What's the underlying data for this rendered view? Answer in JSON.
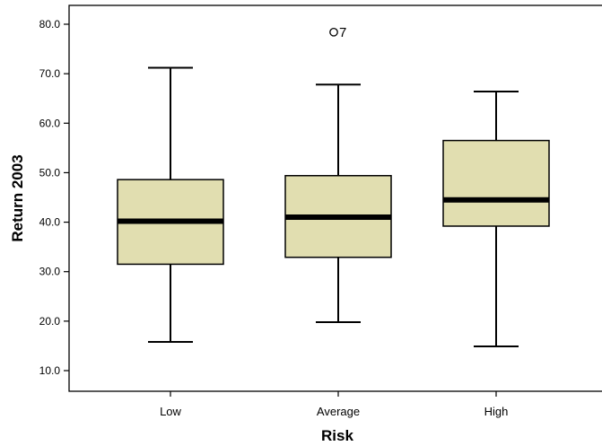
{
  "colors": {
    "box_fill": "#e1deb0",
    "stroke": "#000000",
    "background": "#ffffff"
  },
  "chart_data": {
    "type": "boxplot",
    "xlabel": "Risk",
    "ylabel": "Return 2003",
    "ylim": [
      5,
      84
    ],
    "yticks": [
      "10.0",
      "20.0",
      "30.0",
      "40.0",
      "50.0",
      "60.0",
      "70.0",
      "80.0"
    ],
    "grid": false,
    "legend": "none",
    "categories": [
      "Low",
      "Average",
      "High"
    ],
    "boxes": [
      {
        "category": "Low",
        "min": 15.8,
        "q1": 31.5,
        "median": 40.2,
        "q3": 48.6,
        "max": 71.2
      },
      {
        "category": "Average",
        "min": 19.8,
        "q1": 32.9,
        "median": 41.0,
        "q3": 49.4,
        "max": 67.8
      },
      {
        "category": "High",
        "min": 14.9,
        "q1": 39.2,
        "median": 44.5,
        "q3": 56.5,
        "max": 66.4
      }
    ],
    "outliers": [
      {
        "category": "Average",
        "value": 78.4,
        "label": "7"
      }
    ]
  }
}
